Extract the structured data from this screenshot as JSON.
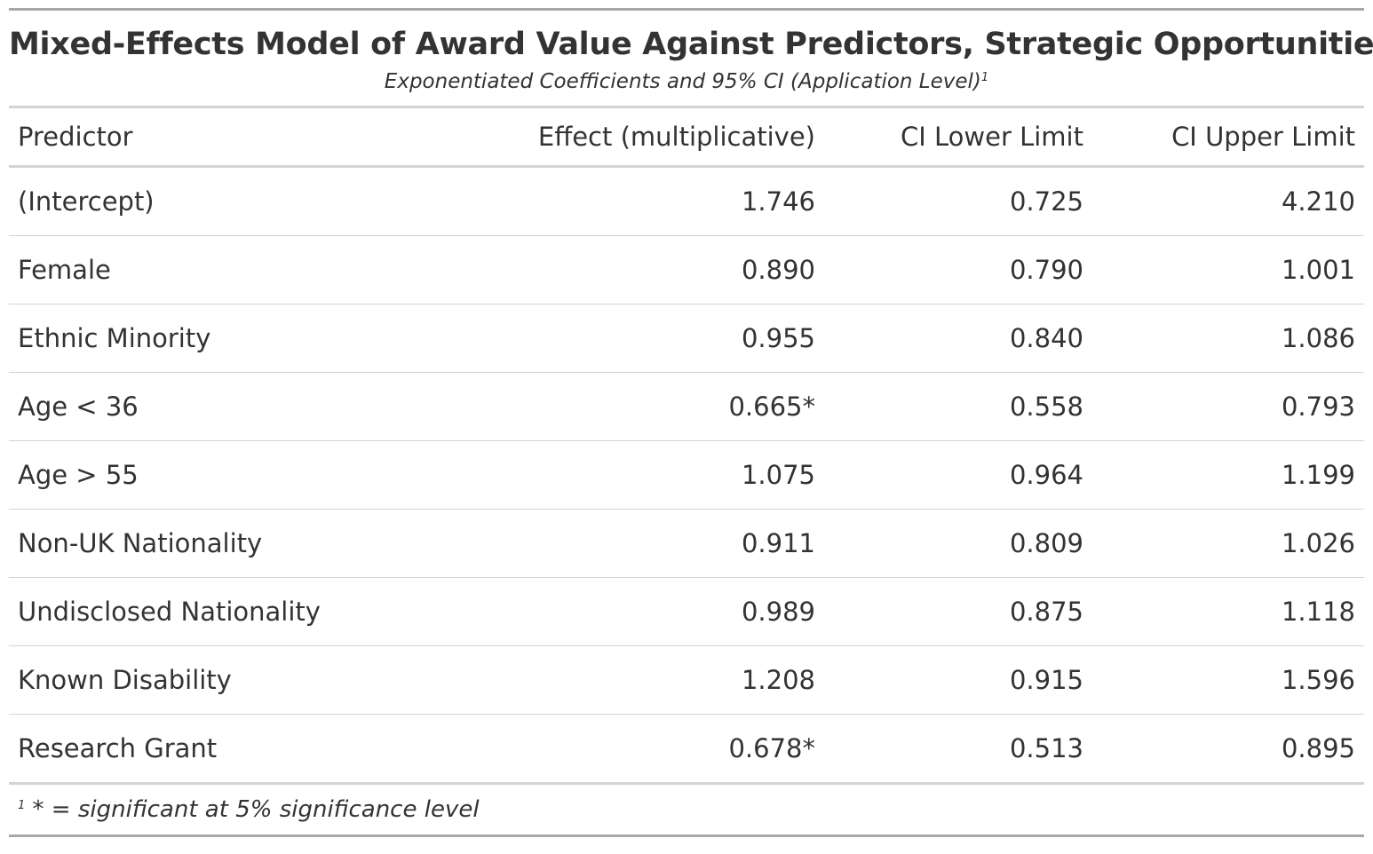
{
  "title": "Mixed-Effects Model of Award Value Against Predictors, Strategic Opportunities",
  "subtitle": "Exponentiated Coefficients and 95% CI (Application Level)",
  "subtitle_footnote_mark": "1",
  "columns": {
    "predictor": "Predictor",
    "effect": "Effect (multiplicative)",
    "ci_lower": "CI Lower Limit",
    "ci_upper": "CI Upper Limit"
  },
  "rows": [
    {
      "predictor": "(Intercept)",
      "effect": "1.746",
      "ci_lower": "0.725",
      "ci_upper": "4.210"
    },
    {
      "predictor": "Female",
      "effect": "0.890",
      "ci_lower": "0.790",
      "ci_upper": "1.001"
    },
    {
      "predictor": "Ethnic Minority",
      "effect": "0.955",
      "ci_lower": "0.840",
      "ci_upper": "1.086"
    },
    {
      "predictor": "Age < 36",
      "effect": "0.665*",
      "ci_lower": "0.558",
      "ci_upper": "0.793"
    },
    {
      "predictor": "Age > 55",
      "effect": "1.075",
      "ci_lower": "0.964",
      "ci_upper": "1.199"
    },
    {
      "predictor": "Non-UK Nationality",
      "effect": "0.911",
      "ci_lower": "0.809",
      "ci_upper": "1.026"
    },
    {
      "predictor": "Undisclosed Nationality",
      "effect": "0.989",
      "ci_lower": "0.875",
      "ci_upper": "1.118"
    },
    {
      "predictor": "Known Disability",
      "effect": "1.208",
      "ci_lower": "0.915",
      "ci_upper": "1.596"
    },
    {
      "predictor": "Research Grant",
      "effect": "0.678*",
      "ci_lower": "0.513",
      "ci_upper": "0.895"
    }
  ],
  "footnote": {
    "mark": "1",
    "text": "* = significant at 5% significance level"
  }
}
